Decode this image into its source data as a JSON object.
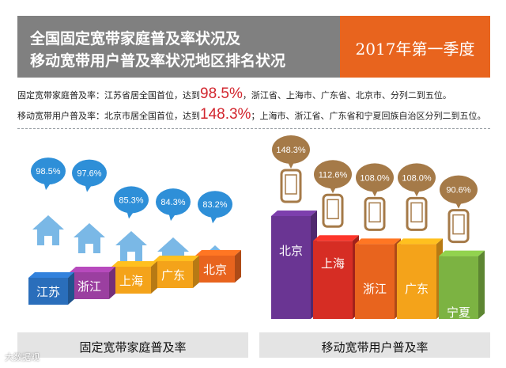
{
  "header": {
    "title_line1": "全国固定宽带家庭普及率状况及",
    "title_line2": "移动宽带用户普及率状况地区排名状况",
    "period": "2017年第一季度"
  },
  "summary": {
    "line1_pre": "固定宽带家庭普及率：江苏省居全国首位，达到",
    "line1_value": "98.5%",
    "line1_post": "，浙江省、上海市、广东省、北京市、分列二到五位。",
    "line2_pre": "移动宽带用户普及率：北京市居全国首位，达到",
    "line2_value": "148.3%",
    "line2_post": "；上海市、浙江省、广东省和宁夏回族自治区分列二到五位。"
  },
  "footer": {
    "left_label": "固定宽带家庭普及率",
    "right_label": "移动宽带用户普及率"
  },
  "watermark": "大数据观",
  "colors": {
    "header_gray": "#808080",
    "header_orange": "#e8641e",
    "highlight_red": "#d2262e",
    "bubble_blue": "#2e8fd8",
    "house_blue": "#7ab8e6",
    "bubble_brown": "#a57a48"
  },
  "chart_data": [
    {
      "type": "bar",
      "title": "固定宽带家庭普及率",
      "categories": [
        "江苏",
        "浙江",
        "上海",
        "广东",
        "北京"
      ],
      "values": [
        98.5,
        97.6,
        85.3,
        84.3,
        83.2
      ],
      "labels": [
        "98.5%",
        "97.6%",
        "85.3%",
        "84.3%",
        "83.2%"
      ],
      "unit": "%",
      "colors": [
        "#2a6ebb",
        "#9b3fa0",
        "#f4a31a",
        "#f4a31a",
        "#e8641e"
      ]
    },
    {
      "type": "bar",
      "title": "移动宽带用户普及率",
      "categories": [
        "北京",
        "上海",
        "浙江",
        "广东",
        "宁夏"
      ],
      "values": [
        148.3,
        112.6,
        108.0,
        108.0,
        90.6
      ],
      "labels": [
        "148.3%",
        "112.6%",
        "108.0%",
        "108.0%",
        "90.6%"
      ],
      "unit": "%",
      "colors": [
        "#6a3593",
        "#d62d24",
        "#e8641e",
        "#f4a31a",
        "#7cb342"
      ]
    }
  ]
}
